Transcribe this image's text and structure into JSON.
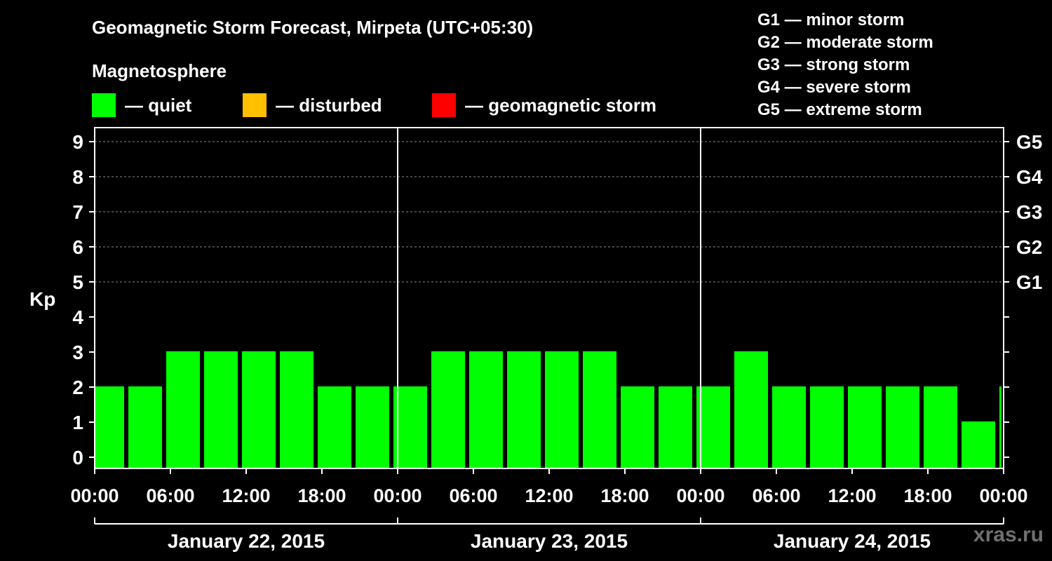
{
  "title": "Geomagnetic Storm Forecast, Mirpeta (UTC+05:30)",
  "magnetosphere_label": "Magnetosphere",
  "legend": [
    {
      "label": "— quiet",
      "color": "#00ff00"
    },
    {
      "label": "— disturbed",
      "color": "#ffc000"
    },
    {
      "label": "— geomagnetic storm",
      "color": "#ff0000"
    }
  ],
  "storm_scale": [
    "G1 — minor storm",
    "G2 — moderate storm",
    "G3 — strong storm",
    "G4 — severe storm",
    "G5 — extreme storm"
  ],
  "watermark": "xras.ru",
  "chart_data": {
    "type": "bar",
    "ylabel": "Kp",
    "ylim": [
      0,
      9
    ],
    "y_ticks": [
      0,
      1,
      2,
      3,
      4,
      5,
      6,
      7,
      8,
      9
    ],
    "g_levels": [
      {
        "label": "G1",
        "kp": 5
      },
      {
        "label": "G2",
        "kp": 6
      },
      {
        "label": "G3",
        "kp": 7
      },
      {
        "label": "G4",
        "kp": 8
      },
      {
        "label": "G5",
        "kp": 9
      }
    ],
    "x_tick_labels": [
      "00:00",
      "06:00",
      "12:00",
      "18:00",
      "00:00",
      "06:00",
      "12:00",
      "18:00",
      "00:00",
      "06:00",
      "12:00",
      "18:00",
      "00:00"
    ],
    "days": [
      "January 22, 2015",
      "January 23, 2015",
      "January 24, 2015"
    ],
    "start_hour": 0,
    "total_hours": 72,
    "bars": [
      {
        "start_hour": 0,
        "end_hour": 2.5,
        "kp": 2
      },
      {
        "start_hour": 2.5,
        "end_hour": 5.5,
        "kp": 2
      },
      {
        "start_hour": 5.5,
        "end_hour": 8.5,
        "kp": 3
      },
      {
        "start_hour": 8.5,
        "end_hour": 11.5,
        "kp": 3
      },
      {
        "start_hour": 11.5,
        "end_hour": 14.5,
        "kp": 3
      },
      {
        "start_hour": 14.5,
        "end_hour": 17.5,
        "kp": 3
      },
      {
        "start_hour": 17.5,
        "end_hour": 20.5,
        "kp": 2
      },
      {
        "start_hour": 20.5,
        "end_hour": 23.5,
        "kp": 2
      },
      {
        "start_hour": 23.5,
        "end_hour": 26.5,
        "kp": 2
      },
      {
        "start_hour": 26.5,
        "end_hour": 29.5,
        "kp": 3
      },
      {
        "start_hour": 29.5,
        "end_hour": 32.5,
        "kp": 3
      },
      {
        "start_hour": 32.5,
        "end_hour": 35.5,
        "kp": 3
      },
      {
        "start_hour": 35.5,
        "end_hour": 38.5,
        "kp": 3
      },
      {
        "start_hour": 38.5,
        "end_hour": 41.5,
        "kp": 3
      },
      {
        "start_hour": 41.5,
        "end_hour": 44.5,
        "kp": 2
      },
      {
        "start_hour": 44.5,
        "end_hour": 47.5,
        "kp": 2
      },
      {
        "start_hour": 47.5,
        "end_hour": 50.5,
        "kp": 2
      },
      {
        "start_hour": 50.5,
        "end_hour": 53.5,
        "kp": 3
      },
      {
        "start_hour": 53.5,
        "end_hour": 56.5,
        "kp": 2
      },
      {
        "start_hour": 56.5,
        "end_hour": 59.5,
        "kp": 2
      },
      {
        "start_hour": 59.5,
        "end_hour": 62.5,
        "kp": 2
      },
      {
        "start_hour": 62.5,
        "end_hour": 65.5,
        "kp": 2
      },
      {
        "start_hour": 65.5,
        "end_hour": 68.5,
        "kp": 2
      },
      {
        "start_hour": 68.5,
        "end_hour": 71.5,
        "kp": 1
      },
      {
        "start_hour": 71.5,
        "end_hour": 72,
        "kp": 2
      }
    ],
    "bar_color": "#00ff00"
  }
}
